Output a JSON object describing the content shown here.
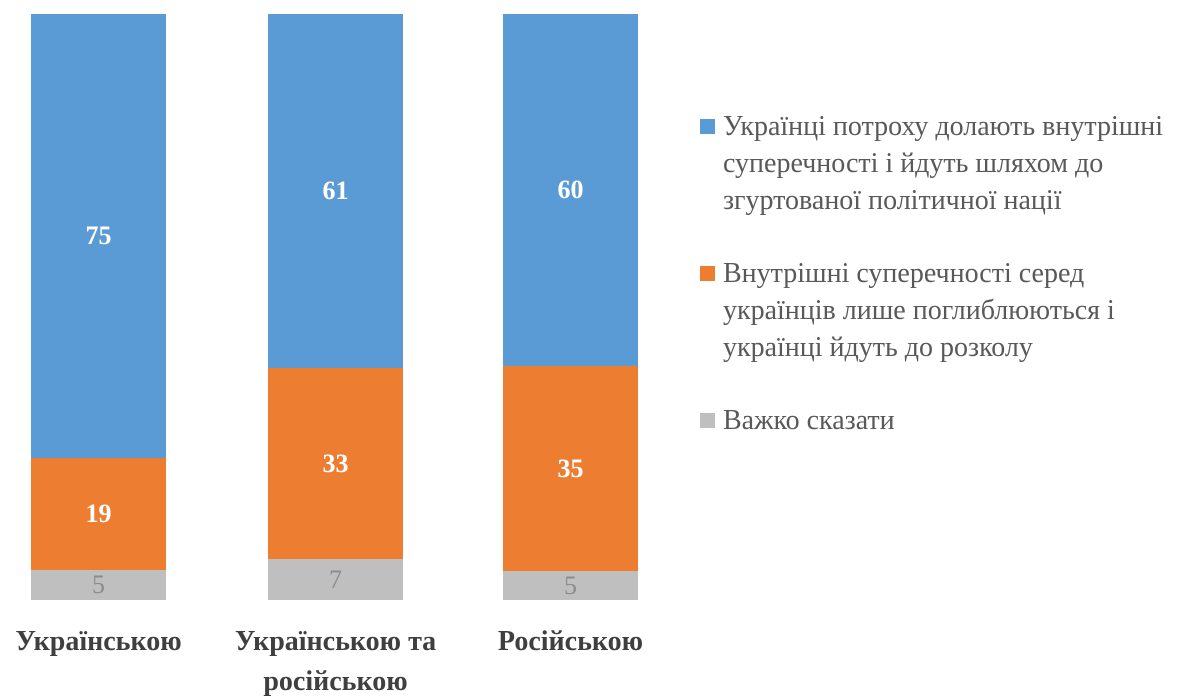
{
  "chart_data": {
    "type": "bar",
    "stacking": "stacked-column",
    "title": "",
    "xlabel": "",
    "ylabel": "",
    "grid": false,
    "axes_visible": false,
    "legend_position": "right",
    "background": "#FFFFFF",
    "categories": [
      "Українською",
      "Українською та російською",
      "Російською"
    ],
    "series": [
      {
        "name": "Українці потроху долають внутрішні суперечності і йдуть шляхом до згуртованої політичної нації",
        "color": "#5B9BD5",
        "values": [
          75,
          61,
          60
        ],
        "label_color": "#FFFFFF",
        "label_bold": true
      },
      {
        "name": "Внутрішні суперечності серед українців лише поглиблюються і українці йдуть до розколу",
        "color": "#ED7D31",
        "values": [
          19,
          33,
          35
        ],
        "label_color": "#FFFFFF",
        "label_bold": true
      },
      {
        "name": "Важко сказати",
        "color": "#BFBFBF",
        "values": [
          5,
          7,
          5
        ],
        "label_color": "#8C8C8C",
        "label_bold": false
      }
    ],
    "category_label_color": "#3F3F3F",
    "legend_text_color": "#595959"
  }
}
